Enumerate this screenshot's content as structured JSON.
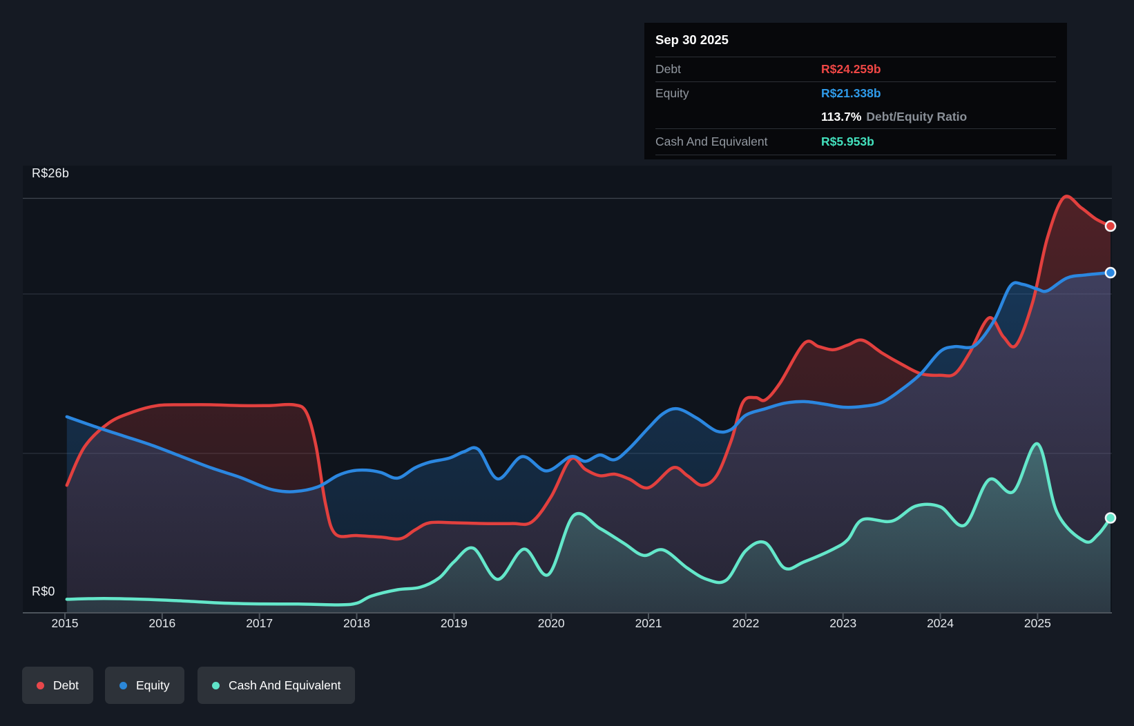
{
  "y_axis_max_label": "R$26b",
  "y_axis_zero_label": "R$0",
  "tooltip": {
    "title": "Sep 30 2025",
    "debt_label": "Debt",
    "debt_value": "R$24.259b",
    "equity_label": "Equity",
    "equity_value": "R$21.338b",
    "ratio_value": "113.7%",
    "ratio_label": "Debt/Equity Ratio",
    "cash_label": "Cash And Equivalent",
    "cash_value": "R$5.953b"
  },
  "colors": {
    "debt": "#e2403e",
    "equity": "#2b87e0",
    "cash": "#64e7ca",
    "debt_value_text": "#ef4745",
    "equity_value_text": "#2f9bea",
    "cash_value_text": "#43e0bd",
    "grid_bright": "#3d434c",
    "grid_faint": "#272d36",
    "axis_line": "#4d545c",
    "plot_background": "#0f141c"
  },
  "legend": {
    "items": [
      {
        "id": "debt",
        "label": "Debt",
        "color": "#e8474b"
      },
      {
        "id": "equity",
        "label": "Equity",
        "color": "#2b87d8"
      },
      {
        "id": "cash",
        "label": "Cash And Equivalent",
        "color": "#5fe3c8"
      }
    ]
  },
  "chart_data": {
    "type": "area",
    "title": "Debt to Equity history",
    "currency_unit": "R$ billions",
    "x_axis": {
      "years": [
        2015,
        2016,
        2017,
        2018,
        2019,
        2020,
        2021,
        2022,
        2023,
        2024,
        2025
      ],
      "x_end": 2025.75
    },
    "y_axis": {
      "min": 0,
      "max": 26,
      "max_label": "R$26b",
      "zero_label": "R$0",
      "gridline_values": [
        26,
        20,
        10
      ]
    },
    "legend_position": "bottom-left",
    "grid": true,
    "series": [
      {
        "id": "debt",
        "name": "Debt",
        "color": "#e2403e",
        "end_value": 24.259,
        "points": [
          [
            2015.02,
            8.0
          ],
          [
            2015.2,
            10.4
          ],
          [
            2015.45,
            11.9
          ],
          [
            2015.7,
            12.6
          ],
          [
            2015.95,
            13.0
          ],
          [
            2016.2,
            13.05
          ],
          [
            2016.5,
            13.05
          ],
          [
            2016.8,
            13.0
          ],
          [
            2017.1,
            13.0
          ],
          [
            2017.35,
            13.05
          ],
          [
            2017.48,
            12.6
          ],
          [
            2017.58,
            10.5
          ],
          [
            2017.68,
            6.8
          ],
          [
            2017.78,
            4.95
          ],
          [
            2018.0,
            4.85
          ],
          [
            2018.25,
            4.75
          ],
          [
            2018.45,
            4.65
          ],
          [
            2018.6,
            5.2
          ],
          [
            2018.75,
            5.65
          ],
          [
            2019.0,
            5.65
          ],
          [
            2019.3,
            5.6
          ],
          [
            2019.6,
            5.6
          ],
          [
            2019.8,
            5.7
          ],
          [
            2020.0,
            7.3
          ],
          [
            2020.2,
            9.65
          ],
          [
            2020.35,
            9.0
          ],
          [
            2020.5,
            8.6
          ],
          [
            2020.65,
            8.7
          ],
          [
            2020.8,
            8.4
          ],
          [
            2021.0,
            7.85
          ],
          [
            2021.25,
            9.1
          ],
          [
            2021.4,
            8.6
          ],
          [
            2021.55,
            8.0
          ],
          [
            2021.7,
            8.6
          ],
          [
            2021.85,
            10.8
          ],
          [
            2021.97,
            13.2
          ],
          [
            2022.1,
            13.5
          ],
          [
            2022.2,
            13.35
          ],
          [
            2022.35,
            14.4
          ],
          [
            2022.6,
            16.9
          ],
          [
            2022.75,
            16.7
          ],
          [
            2022.9,
            16.5
          ],
          [
            2023.05,
            16.8
          ],
          [
            2023.2,
            17.1
          ],
          [
            2023.4,
            16.3
          ],
          [
            2023.6,
            15.6
          ],
          [
            2023.8,
            15.0
          ],
          [
            2024.0,
            14.9
          ],
          [
            2024.15,
            15.0
          ],
          [
            2024.3,
            16.3
          ],
          [
            2024.5,
            18.5
          ],
          [
            2024.65,
            17.3
          ],
          [
            2024.78,
            16.8
          ],
          [
            2024.95,
            19.5
          ],
          [
            2025.1,
            23.5
          ],
          [
            2025.27,
            26.05
          ],
          [
            2025.45,
            25.4
          ],
          [
            2025.6,
            24.7
          ],
          [
            2025.75,
            24.259
          ]
        ]
      },
      {
        "id": "equity",
        "name": "Equity",
        "color": "#2b87e0",
        "end_value": 21.338,
        "points": [
          [
            2015.02,
            12.3
          ],
          [
            2015.3,
            11.7
          ],
          [
            2015.6,
            11.1
          ],
          [
            2015.9,
            10.5
          ],
          [
            2016.2,
            9.8
          ],
          [
            2016.5,
            9.1
          ],
          [
            2016.8,
            8.5
          ],
          [
            2017.0,
            8.0
          ],
          [
            2017.15,
            7.7
          ],
          [
            2017.35,
            7.6
          ],
          [
            2017.6,
            7.9
          ],
          [
            2017.8,
            8.6
          ],
          [
            2017.95,
            8.9
          ],
          [
            2018.1,
            8.95
          ],
          [
            2018.25,
            8.8
          ],
          [
            2018.42,
            8.45
          ],
          [
            2018.6,
            9.1
          ],
          [
            2018.75,
            9.45
          ],
          [
            2018.95,
            9.7
          ],
          [
            2019.1,
            10.1
          ],
          [
            2019.25,
            10.25
          ],
          [
            2019.45,
            8.4
          ],
          [
            2019.7,
            9.8
          ],
          [
            2019.95,
            8.9
          ],
          [
            2020.2,
            9.8
          ],
          [
            2020.35,
            9.5
          ],
          [
            2020.5,
            9.9
          ],
          [
            2020.65,
            9.6
          ],
          [
            2020.8,
            10.3
          ],
          [
            2021.0,
            11.6
          ],
          [
            2021.15,
            12.5
          ],
          [
            2021.3,
            12.8
          ],
          [
            2021.5,
            12.2
          ],
          [
            2021.7,
            11.4
          ],
          [
            2021.85,
            11.5
          ],
          [
            2022.0,
            12.4
          ],
          [
            2022.2,
            12.8
          ],
          [
            2022.4,
            13.15
          ],
          [
            2022.6,
            13.25
          ],
          [
            2022.8,
            13.1
          ],
          [
            2023.0,
            12.9
          ],
          [
            2023.2,
            12.95
          ],
          [
            2023.4,
            13.2
          ],
          [
            2023.6,
            14.0
          ],
          [
            2023.8,
            15.0
          ],
          [
            2024.0,
            16.4
          ],
          [
            2024.15,
            16.7
          ],
          [
            2024.35,
            16.75
          ],
          [
            2024.55,
            18.3
          ],
          [
            2024.72,
            20.5
          ],
          [
            2024.85,
            20.6
          ],
          [
            2025.0,
            20.3
          ],
          [
            2025.1,
            20.2
          ],
          [
            2025.3,
            21.0
          ],
          [
            2025.5,
            21.2
          ],
          [
            2025.75,
            21.338
          ]
        ]
      },
      {
        "id": "cash",
        "name": "Cash And Equivalent",
        "color": "#64e7ca",
        "end_value": 5.953,
        "points": [
          [
            2015.02,
            0.85
          ],
          [
            2015.4,
            0.9
          ],
          [
            2015.8,
            0.85
          ],
          [
            2016.2,
            0.75
          ],
          [
            2016.6,
            0.62
          ],
          [
            2017.0,
            0.56
          ],
          [
            2017.4,
            0.55
          ],
          [
            2017.8,
            0.5
          ],
          [
            2018.0,
            0.6
          ],
          [
            2018.15,
            1.05
          ],
          [
            2018.42,
            1.45
          ],
          [
            2018.65,
            1.6
          ],
          [
            2018.85,
            2.2
          ],
          [
            2019.0,
            3.2
          ],
          [
            2019.2,
            4.05
          ],
          [
            2019.45,
            2.1
          ],
          [
            2019.72,
            4.0
          ],
          [
            2019.97,
            2.4
          ],
          [
            2020.23,
            6.1
          ],
          [
            2020.5,
            5.3
          ],
          [
            2020.75,
            4.35
          ],
          [
            2020.95,
            3.6
          ],
          [
            2021.15,
            3.95
          ],
          [
            2021.4,
            2.8
          ],
          [
            2021.6,
            2.1
          ],
          [
            2021.8,
            2.05
          ],
          [
            2022.0,
            3.9
          ],
          [
            2022.2,
            4.4
          ],
          [
            2022.4,
            2.8
          ],
          [
            2022.6,
            3.2
          ],
          [
            2022.9,
            4.0
          ],
          [
            2023.05,
            4.6
          ],
          [
            2023.2,
            5.85
          ],
          [
            2023.5,
            5.75
          ],
          [
            2023.75,
            6.7
          ],
          [
            2024.0,
            6.65
          ],
          [
            2024.25,
            5.5
          ],
          [
            2024.5,
            8.35
          ],
          [
            2024.75,
            7.6
          ],
          [
            2025.0,
            10.6
          ],
          [
            2025.2,
            6.3
          ],
          [
            2025.48,
            4.5
          ],
          [
            2025.62,
            4.9
          ],
          [
            2025.75,
            5.953
          ]
        ]
      }
    ]
  }
}
